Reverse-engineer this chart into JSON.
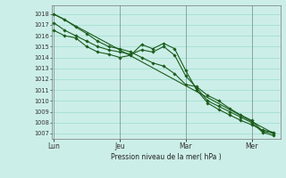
{
  "bg_color": "#cceee8",
  "grid_color": "#99ddcc",
  "line_color": "#1a5c1a",
  "marker_color": "#1a5c1a",
  "xlabel": "Pression niveau de la mer( hPa )",
  "ylim": [
    1006.5,
    1018.8
  ],
  "yticks": [
    1007,
    1008,
    1009,
    1010,
    1011,
    1012,
    1013,
    1014,
    1015,
    1016,
    1017,
    1018
  ],
  "xtick_labels": [
    "Lun",
    "Jeu",
    "Mar",
    "Mer"
  ],
  "xtick_positions": [
    0,
    3,
    6,
    9
  ],
  "xlim": [
    -0.1,
    10.3
  ],
  "series": [
    {
      "x": [
        0,
        0.5,
        1,
        1.5,
        2,
        2.5,
        3,
        3.5,
        4,
        4.5,
        5,
        5.5,
        6,
        6.5,
        7,
        7.5,
        8,
        8.5,
        9,
        9.5,
        10
      ],
      "y": [
        1018.0,
        1017.5,
        1016.8,
        1016.2,
        1015.5,
        1015.0,
        1014.8,
        1014.5,
        1014.0,
        1013.5,
        1013.2,
        1012.5,
        1011.5,
        1011.3,
        1010.5,
        1010.0,
        1009.3,
        1008.7,
        1008.2,
        1007.2,
        1007.0
      ],
      "lw": 0.8,
      "no_marker": false
    },
    {
      "x": [
        0,
        0.5,
        1,
        1.5,
        2,
        2.5,
        3,
        3.5,
        4,
        4.5,
        5,
        5.5,
        6,
        6.5,
        7,
        7.5,
        8,
        8.5,
        9,
        9.5,
        10
      ],
      "y": [
        1017.2,
        1016.5,
        1016.0,
        1015.5,
        1015.0,
        1014.7,
        1014.5,
        1014.3,
        1014.7,
        1014.5,
        1015.0,
        1014.2,
        1012.3,
        1011.2,
        1010.0,
        1009.5,
        1009.0,
        1008.5,
        1008.0,
        1007.1,
        1006.8
      ],
      "lw": 0.8,
      "no_marker": false
    },
    {
      "x": [
        0,
        0.5,
        1,
        1.5,
        2,
        2.5,
        3,
        3.5,
        4,
        4.5,
        5,
        5.5,
        6,
        6.5,
        7,
        7.5,
        8,
        8.5,
        9,
        9.5,
        10
      ],
      "y": [
        1016.5,
        1016.0,
        1015.8,
        1015.0,
        1014.5,
        1014.3,
        1014.0,
        1014.2,
        1015.2,
        1014.8,
        1015.3,
        1014.8,
        1012.8,
        1011.0,
        1009.8,
        1009.2,
        1008.7,
        1008.2,
        1007.8,
        1007.3,
        1007.1
      ],
      "lw": 0.8,
      "no_marker": false
    },
    {
      "x": [
        0,
        10
      ],
      "y": [
        1018.0,
        1007.0
      ],
      "lw": 0.8,
      "no_marker": true
    }
  ]
}
